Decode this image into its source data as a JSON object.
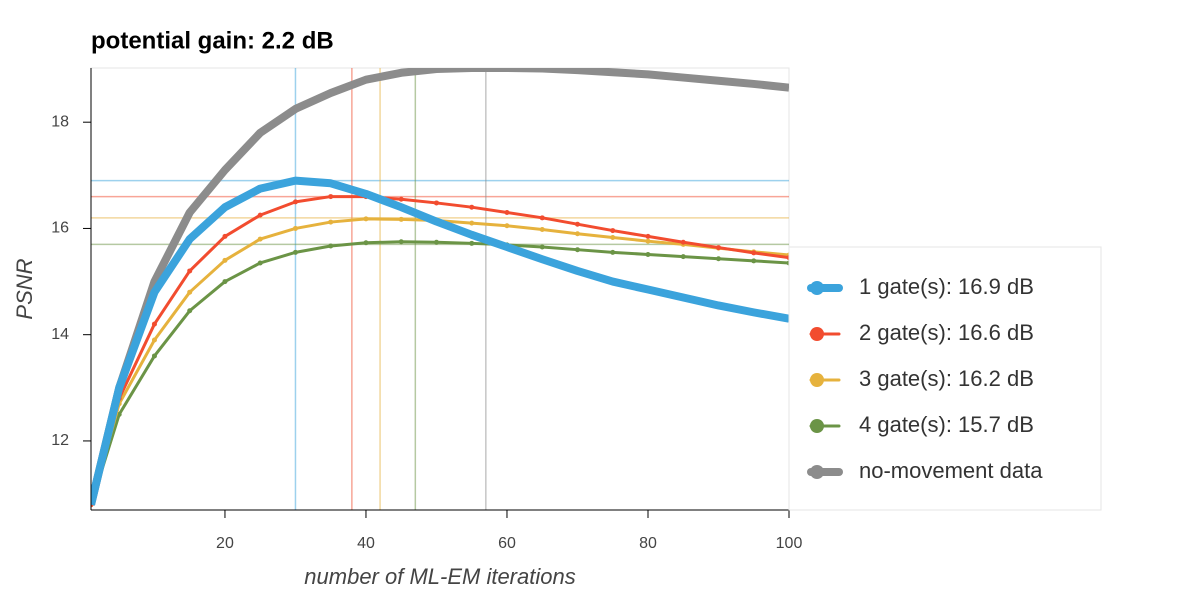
{
  "chart_data": {
    "type": "line",
    "title": "potential gain: 2.2 dB",
    "x_label": "number of ML-EM iterations",
    "y_label": "PSNR",
    "x": [
      1,
      5,
      10,
      15,
      20,
      25,
      30,
      35,
      40,
      45,
      50,
      55,
      60,
      65,
      70,
      75,
      80,
      85,
      90,
      95,
      100
    ],
    "xlim": [
      1,
      100
    ],
    "xticks": [
      20,
      40,
      60,
      80,
      100
    ],
    "ylim": [
      10.7,
      19.02
    ],
    "yticks": [
      12,
      14,
      16,
      18
    ],
    "legend": "right",
    "series": [
      {
        "name": "1 gate(s): 16.9 dB",
        "color": "#3ba3dc",
        "best_iteration": 30,
        "best_psnr": 16.9,
        "values": [
          10.8,
          13.0,
          14.8,
          15.8,
          16.4,
          16.75,
          16.9,
          16.85,
          16.65,
          16.4,
          16.13,
          15.88,
          15.65,
          15.42,
          15.2,
          15.0,
          14.85,
          14.7,
          14.55,
          14.42,
          14.3
        ]
      },
      {
        "name": "2 gate(s): 16.6 dB",
        "color": "#f24c2f",
        "best_iteration": 38,
        "best_psnr": 16.6,
        "values": [
          10.8,
          12.8,
          14.2,
          15.2,
          15.85,
          16.25,
          16.5,
          16.6,
          16.6,
          16.55,
          16.48,
          16.4,
          16.3,
          16.2,
          16.08,
          15.96,
          15.85,
          15.74,
          15.64,
          15.54,
          15.45
        ]
      },
      {
        "name": "3 gate(s): 16.2 dB",
        "color": "#e6b23d",
        "best_iteration": 42,
        "best_psnr": 16.2,
        "values": [
          10.8,
          12.7,
          13.9,
          14.8,
          15.4,
          15.8,
          16.0,
          16.12,
          16.18,
          16.17,
          16.15,
          16.1,
          16.05,
          15.98,
          15.9,
          15.83,
          15.76,
          15.7,
          15.63,
          15.56,
          15.5
        ]
      },
      {
        "name": "4 gate(s): 15.7 dB",
        "color": "#6b9446",
        "best_iteration": 47,
        "best_psnr": 15.7,
        "values": [
          10.8,
          12.5,
          13.6,
          14.45,
          15.0,
          15.35,
          15.55,
          15.67,
          15.73,
          15.75,
          15.74,
          15.72,
          15.69,
          15.65,
          15.6,
          15.55,
          15.51,
          15.47,
          15.43,
          15.39,
          15.35
        ]
      },
      {
        "name": "no-movement data",
        "color": "#8c8c8c",
        "best_iteration": 57,
        "values": [
          10.8,
          13.0,
          15.0,
          16.3,
          17.1,
          17.8,
          18.25,
          18.55,
          18.8,
          18.93,
          19.0,
          19.02,
          19.02,
          19.01,
          18.98,
          18.94,
          18.9,
          18.84,
          18.78,
          18.72,
          18.65
        ]
      }
    ]
  }
}
